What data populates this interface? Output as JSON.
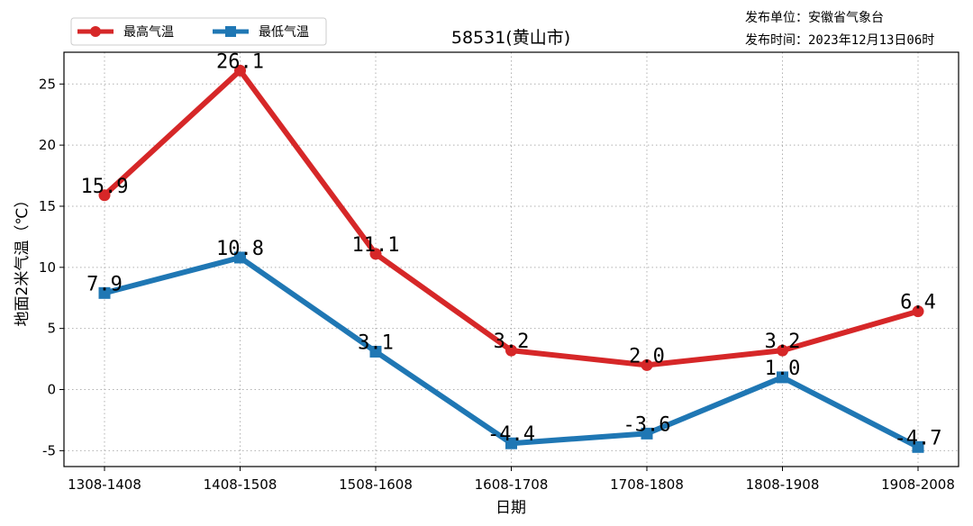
{
  "publisher": {
    "unit": "发布单位：安徽省气象台",
    "time": "发布时间：2023年12月13日06时"
  },
  "colors": {
    "high": "#d62728",
    "low": "#1f77b4",
    "grid": "#b0b0b0"
  },
  "chart_data": {
    "type": "line",
    "title": "58531(黄山市)",
    "xlabel": "日期",
    "ylabel": "地面2米气温（℃）",
    "categories": [
      "1308-1408",
      "1408-1508",
      "1508-1608",
      "1608-1708",
      "1708-1808",
      "1808-1908",
      "1908-2008"
    ],
    "ylim": [
      -6.3,
      27.6
    ],
    "yticks": [
      -5,
      0,
      5,
      10,
      15,
      20,
      25
    ],
    "grid": true,
    "legend_position": "top-left",
    "series": [
      {
        "name": "最高气温",
        "marker": "circle",
        "values": [
          15.9,
          26.1,
          11.1,
          3.2,
          2.0,
          3.2,
          6.4
        ],
        "labels": [
          "15.9",
          "26.1",
          "11.1",
          "3.2",
          "2.0",
          "3.2",
          "6.4"
        ]
      },
      {
        "name": "最低气温",
        "marker": "square",
        "values": [
          7.9,
          10.8,
          3.1,
          -4.4,
          -3.6,
          1.0,
          -4.7
        ],
        "labels": [
          "7.9",
          "10.8",
          "3.1",
          "-4.4",
          "-3.6",
          "1.0",
          "-4.7"
        ]
      }
    ]
  }
}
